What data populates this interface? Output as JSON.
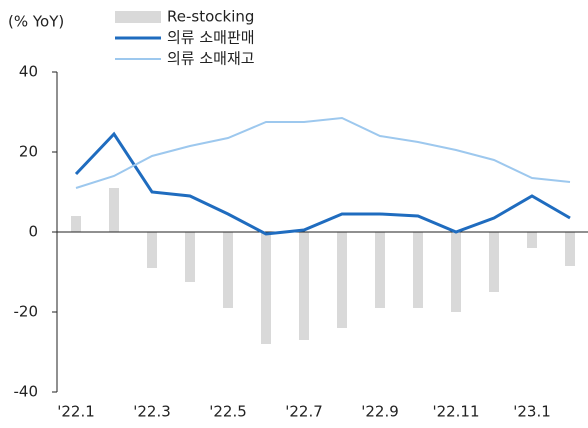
{
  "chart_data": {
    "type": "bar-line",
    "y_label": "(% YoY)",
    "categories": [
      "'22.1",
      null,
      "'22.3",
      null,
      "'22.5",
      null,
      "'22.7",
      null,
      "'22.9",
      null,
      "'22.11",
      null,
      "'23.1",
      null
    ],
    "series": [
      {
        "name": "Re-stocking",
        "kind": "bar",
        "color": "#d9d9d9",
        "values": [
          4,
          11,
          -9,
          -12.5,
          -19,
          -28,
          -27,
          -24,
          -19,
          -19,
          -20,
          -15,
          -4,
          -8.5
        ]
      },
      {
        "name": "의류 소매판매",
        "kind": "line",
        "color": "#1f6cbf",
        "values": [
          14.5,
          24.5,
          10,
          9,
          4.5,
          -0.5,
          0.5,
          4.5,
          4.5,
          4,
          0,
          3.5,
          9,
          3.5
        ]
      },
      {
        "name": "의류 소매재고",
        "kind": "line",
        "color": "#9dc8ee",
        "values": [
          11,
          14,
          19,
          21.5,
          23.5,
          27.5,
          27.5,
          28.5,
          24,
          22.5,
          20.5,
          18,
          13.5,
          12.5
        ]
      }
    ],
    "ylim": [
      -40,
      40
    ],
    "yticks": [
      -40,
      -20,
      0,
      20,
      40
    ]
  }
}
